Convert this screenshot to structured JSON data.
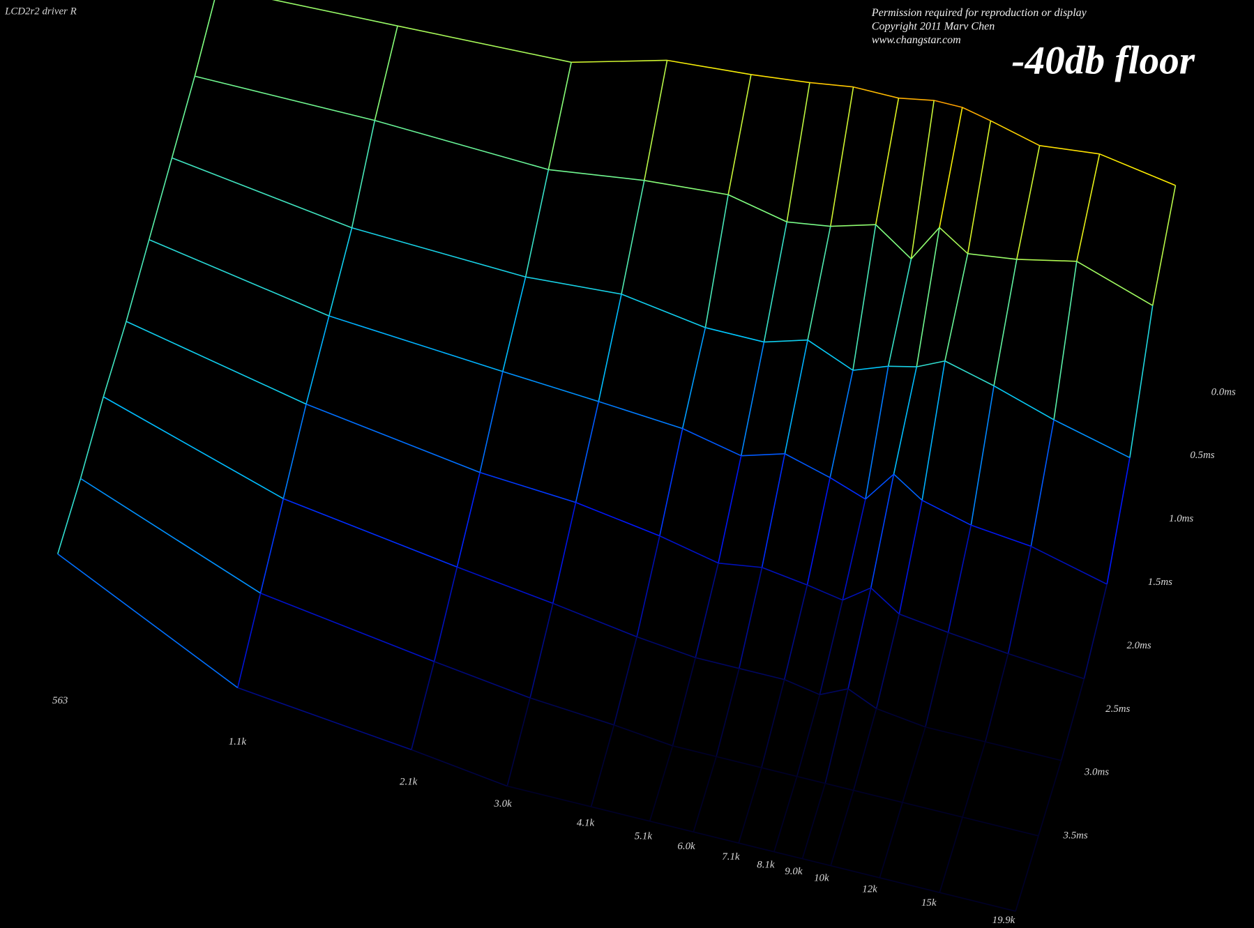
{
  "chart_data": {
    "type": "waterfall",
    "title": "LCD2r2 driver R",
    "notice": [
      "Permission required for reproduction or display",
      "Copyright 2011 Marv Chen",
      "www.changstar.com"
    ],
    "annotation": "-40db floor",
    "x": [
      563,
      1100,
      2100,
      3000,
      4100,
      5100,
      6000,
      7100,
      8100,
      9000,
      10000,
      12000,
      15000,
      19900
    ],
    "xscale": "log",
    "xlim": [
      563,
      19900
    ],
    "xticks": [
      563,
      {
        "value": 1100,
        "label": "1.1k"
      },
      {
        "value": 2100,
        "label": "2.1k"
      },
      {
        "value": 3000,
        "label": "3.0k"
      },
      {
        "value": 4100,
        "label": "4.1k"
      },
      {
        "value": 5100,
        "label": "5.1k"
      },
      {
        "value": 6000,
        "label": "6.0k"
      },
      {
        "value": 7100,
        "label": "7.1k"
      },
      {
        "value": 8100,
        "label": "8.1k"
      },
      {
        "value": 9000,
        "label": "9.0k"
      },
      {
        "value": 10000,
        "label": "10k"
      },
      {
        "value": 12000,
        "label": "12k"
      },
      {
        "value": 15000,
        "label": "15k"
      },
      {
        "value": 19900,
        "label": "19.9k"
      }
    ],
    "z": [
      0,
      0.5,
      1,
      1.5,
      2,
      2.5,
      3,
      3.5
    ],
    "zlim": [
      0,
      3.5
    ],
    "zticks": [
      {
        "value": 0,
        "label": "0.0ms"
      },
      {
        "value": 0.5,
        "label": "0.5ms"
      },
      {
        "value": 1,
        "label": "1.0ms"
      },
      {
        "value": 1.5,
        "label": "1.5ms"
      },
      {
        "value": 2,
        "label": "2.0ms"
      },
      {
        "value": 2.5,
        "label": "2.5ms"
      },
      {
        "value": 3,
        "label": "3.0ms"
      },
      {
        "value": 3.5,
        "label": "3.5ms"
      }
    ],
    "ylim": [
      -40,
      0
    ],
    "values": [
      [
        -15,
        -14,
        -13,
        -9,
        -8,
        -7,
        -6,
        -6,
        -5,
        -5,
        -6,
        -8,
        -7,
        -9
      ],
      [
        -17,
        -17,
        -18,
        -16,
        -15,
        -17,
        -16,
        -14,
        -18,
        -12,
        -15,
        -14,
        -12,
        -16
      ],
      [
        -18,
        -22,
        -23,
        -22,
        -24,
        -24,
        -22,
        -25,
        -23,
        -22,
        -20,
        -22,
        -25,
        -28
      ],
      [
        -19,
        -24,
        -26,
        -27,
        -28,
        -30,
        -28,
        -30,
        -32,
        -27,
        -30,
        -32,
        -33,
        -36
      ],
      [
        -20,
        -26,
        -30,
        -31,
        -33,
        -35,
        -34,
        -35,
        -36,
        -33,
        -36,
        -37,
        -38,
        -39
      ],
      [
        -20,
        -29,
        -33,
        -35,
        -37,
        -38,
        -38,
        -38,
        -39,
        -37,
        -39,
        -40,
        -40,
        -40
      ],
      [
        -21,
        -32,
        -36,
        -38,
        -39,
        -40,
        -40,
        -40,
        -40,
        -40,
        -40,
        -40,
        -40,
        -40
      ],
      [
        -21,
        -35,
        -38,
        -40,
        -40,
        -40,
        -40,
        -40,
        -40,
        -40,
        -40,
        -40,
        -40,
        -40
      ]
    ],
    "colormap": [
      "#000028",
      "#0018ff",
      "#00c8ff",
      "#80ff80",
      "#ffee00",
      "#ff2000"
    ]
  }
}
